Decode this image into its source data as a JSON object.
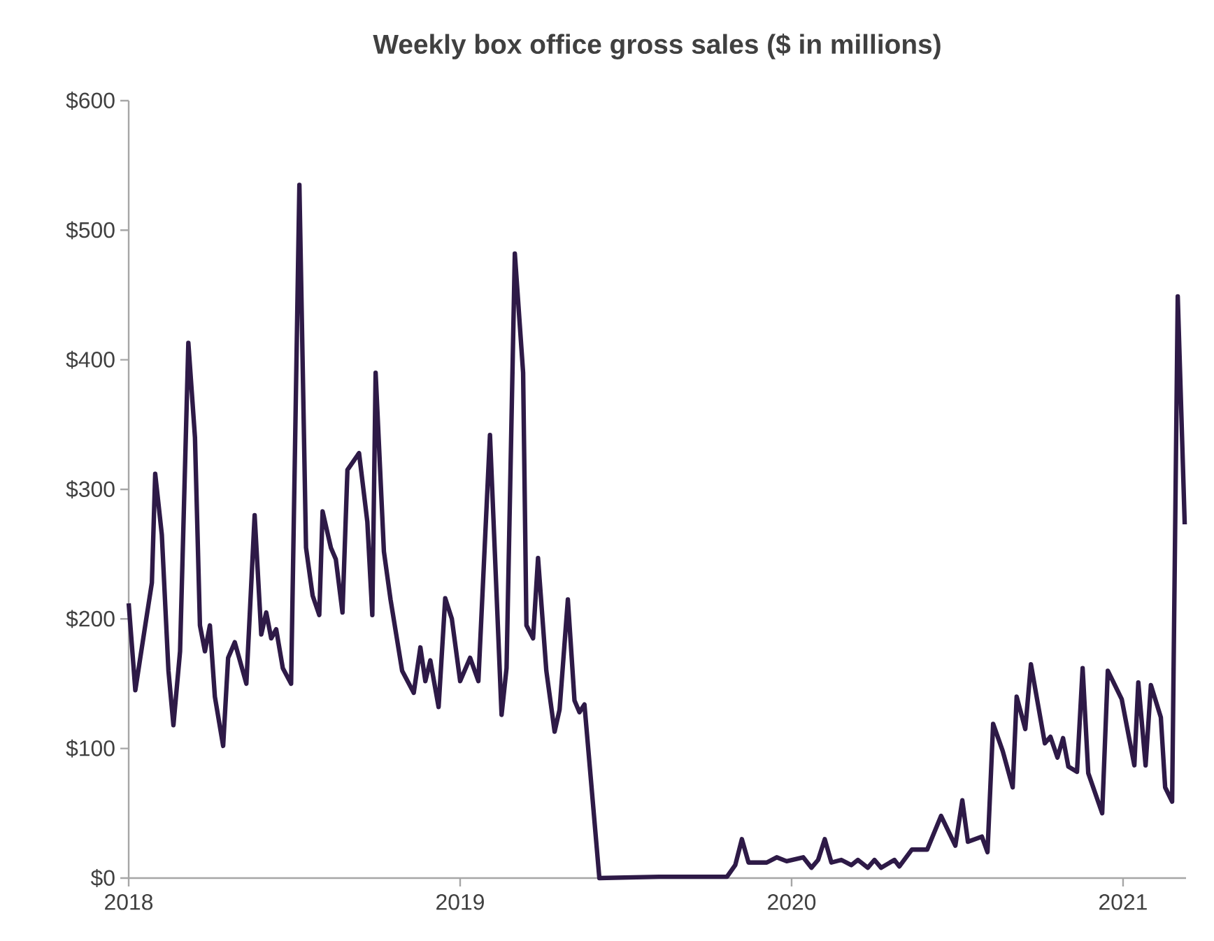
{
  "chart_data": {
    "type": "line",
    "title": "Weekly box office gross sales ($ in millions)",
    "x": [
      2018.0,
      2018.02,
      2018.05,
      2018.07,
      2018.08,
      2018.1,
      2018.12,
      2018.135,
      2018.155,
      2018.18,
      2018.2,
      2018.215,
      2018.23,
      2018.245,
      2018.26,
      2018.285,
      2018.3,
      2018.32,
      2018.355,
      2018.38,
      2018.4,
      2018.415,
      2018.43,
      2018.445,
      2018.465,
      2018.49,
      2018.515,
      2018.535,
      2018.555,
      2018.575,
      2018.585,
      2018.61,
      2018.625,
      2018.645,
      2018.66,
      2018.695,
      2018.72,
      2018.735,
      2018.745,
      2018.77,
      2018.79,
      2018.825,
      2018.86,
      2018.88,
      2018.895,
      2018.91,
      2018.935,
      2018.955,
      2018.975,
      2019.0,
      2019.03,
      2019.055,
      2019.09,
      2019.125,
      2019.14,
      2019.165,
      2019.19,
      2019.2,
      2019.22,
      2019.235,
      2019.26,
      2019.285,
      2019.3,
      2019.325,
      2019.345,
      2019.36,
      2019.375,
      2019.42,
      2019.6,
      2019.805,
      2019.83,
      2019.85,
      2019.87,
      2019.925,
      2019.955,
      2019.985,
      2020.035,
      2020.06,
      2020.08,
      2020.1,
      2020.12,
      2020.15,
      2020.18,
      2020.2,
      2020.23,
      2020.25,
      2020.27,
      2020.31,
      2020.325,
      2020.363,
      2020.409,
      2020.451,
      2020.494,
      2020.515,
      2020.532,
      2020.574,
      2020.591,
      2020.608,
      2020.637,
      2020.667,
      2020.679,
      2020.705,
      2020.722,
      2020.764,
      2020.781,
      2020.802,
      2020.819,
      2020.835,
      2020.861,
      2020.878,
      2020.895,
      2020.937,
      2020.954,
      2020.996,
      2021.034,
      2021.046,
      2021.068,
      2021.084,
      2021.114,
      2021.127,
      2021.148,
      2021.165,
      2021.186
    ],
    "series": [
      {
        "color": "#2e1a47",
        "values": [
          212,
          145,
          195,
          228,
          312,
          265,
          160,
          118,
          175,
          413,
          340,
          195,
          175,
          195,
          140,
          102,
          170,
          182,
          150,
          280,
          188,
          205,
          185,
          192,
          162,
          150,
          535,
          255,
          218,
          203,
          283,
          255,
          246,
          205,
          315,
          328,
          275,
          203,
          390,
          252,
          215,
          160,
          143,
          178,
          152,
          168,
          132,
          216,
          200,
          152,
          170,
          152,
          342,
          126,
          162,
          482,
          390,
          195,
          185,
          247,
          160,
          113,
          130,
          215,
          137,
          128,
          134,
          0,
          1,
          1,
          10,
          30,
          12,
          12,
          16,
          13,
          16,
          8,
          14,
          30,
          12,
          14,
          10,
          14,
          8,
          14,
          8,
          14,
          9,
          22,
          22,
          48,
          25,
          60,
          28,
          32,
          20,
          119,
          98,
          70,
          140,
          115,
          165,
          104,
          109,
          93,
          108,
          86,
          82,
          162,
          81,
          50,
          160,
          138,
          87,
          151,
          87,
          149,
          124,
          70,
          59,
          449,
          273
        ]
      }
    ],
    "xlim": [
      2018,
      2021.19
    ],
    "xticks": [
      2018,
      2019,
      2020,
      2021
    ],
    "ylim": [
      0,
      600
    ],
    "yticks": [
      {
        "value": 0,
        "label": "$0"
      },
      {
        "value": 100,
        "label": "$100"
      },
      {
        "value": 200,
        "label": "$200"
      },
      {
        "value": 300,
        "label": "$300"
      },
      {
        "value": 400,
        "label": "$400"
      },
      {
        "value": 500,
        "label": "$500"
      },
      {
        "value": 600,
        "label": "$600"
      }
    ],
    "grid": false,
    "legend": false,
    "marker": "none",
    "line_style": "solid"
  }
}
